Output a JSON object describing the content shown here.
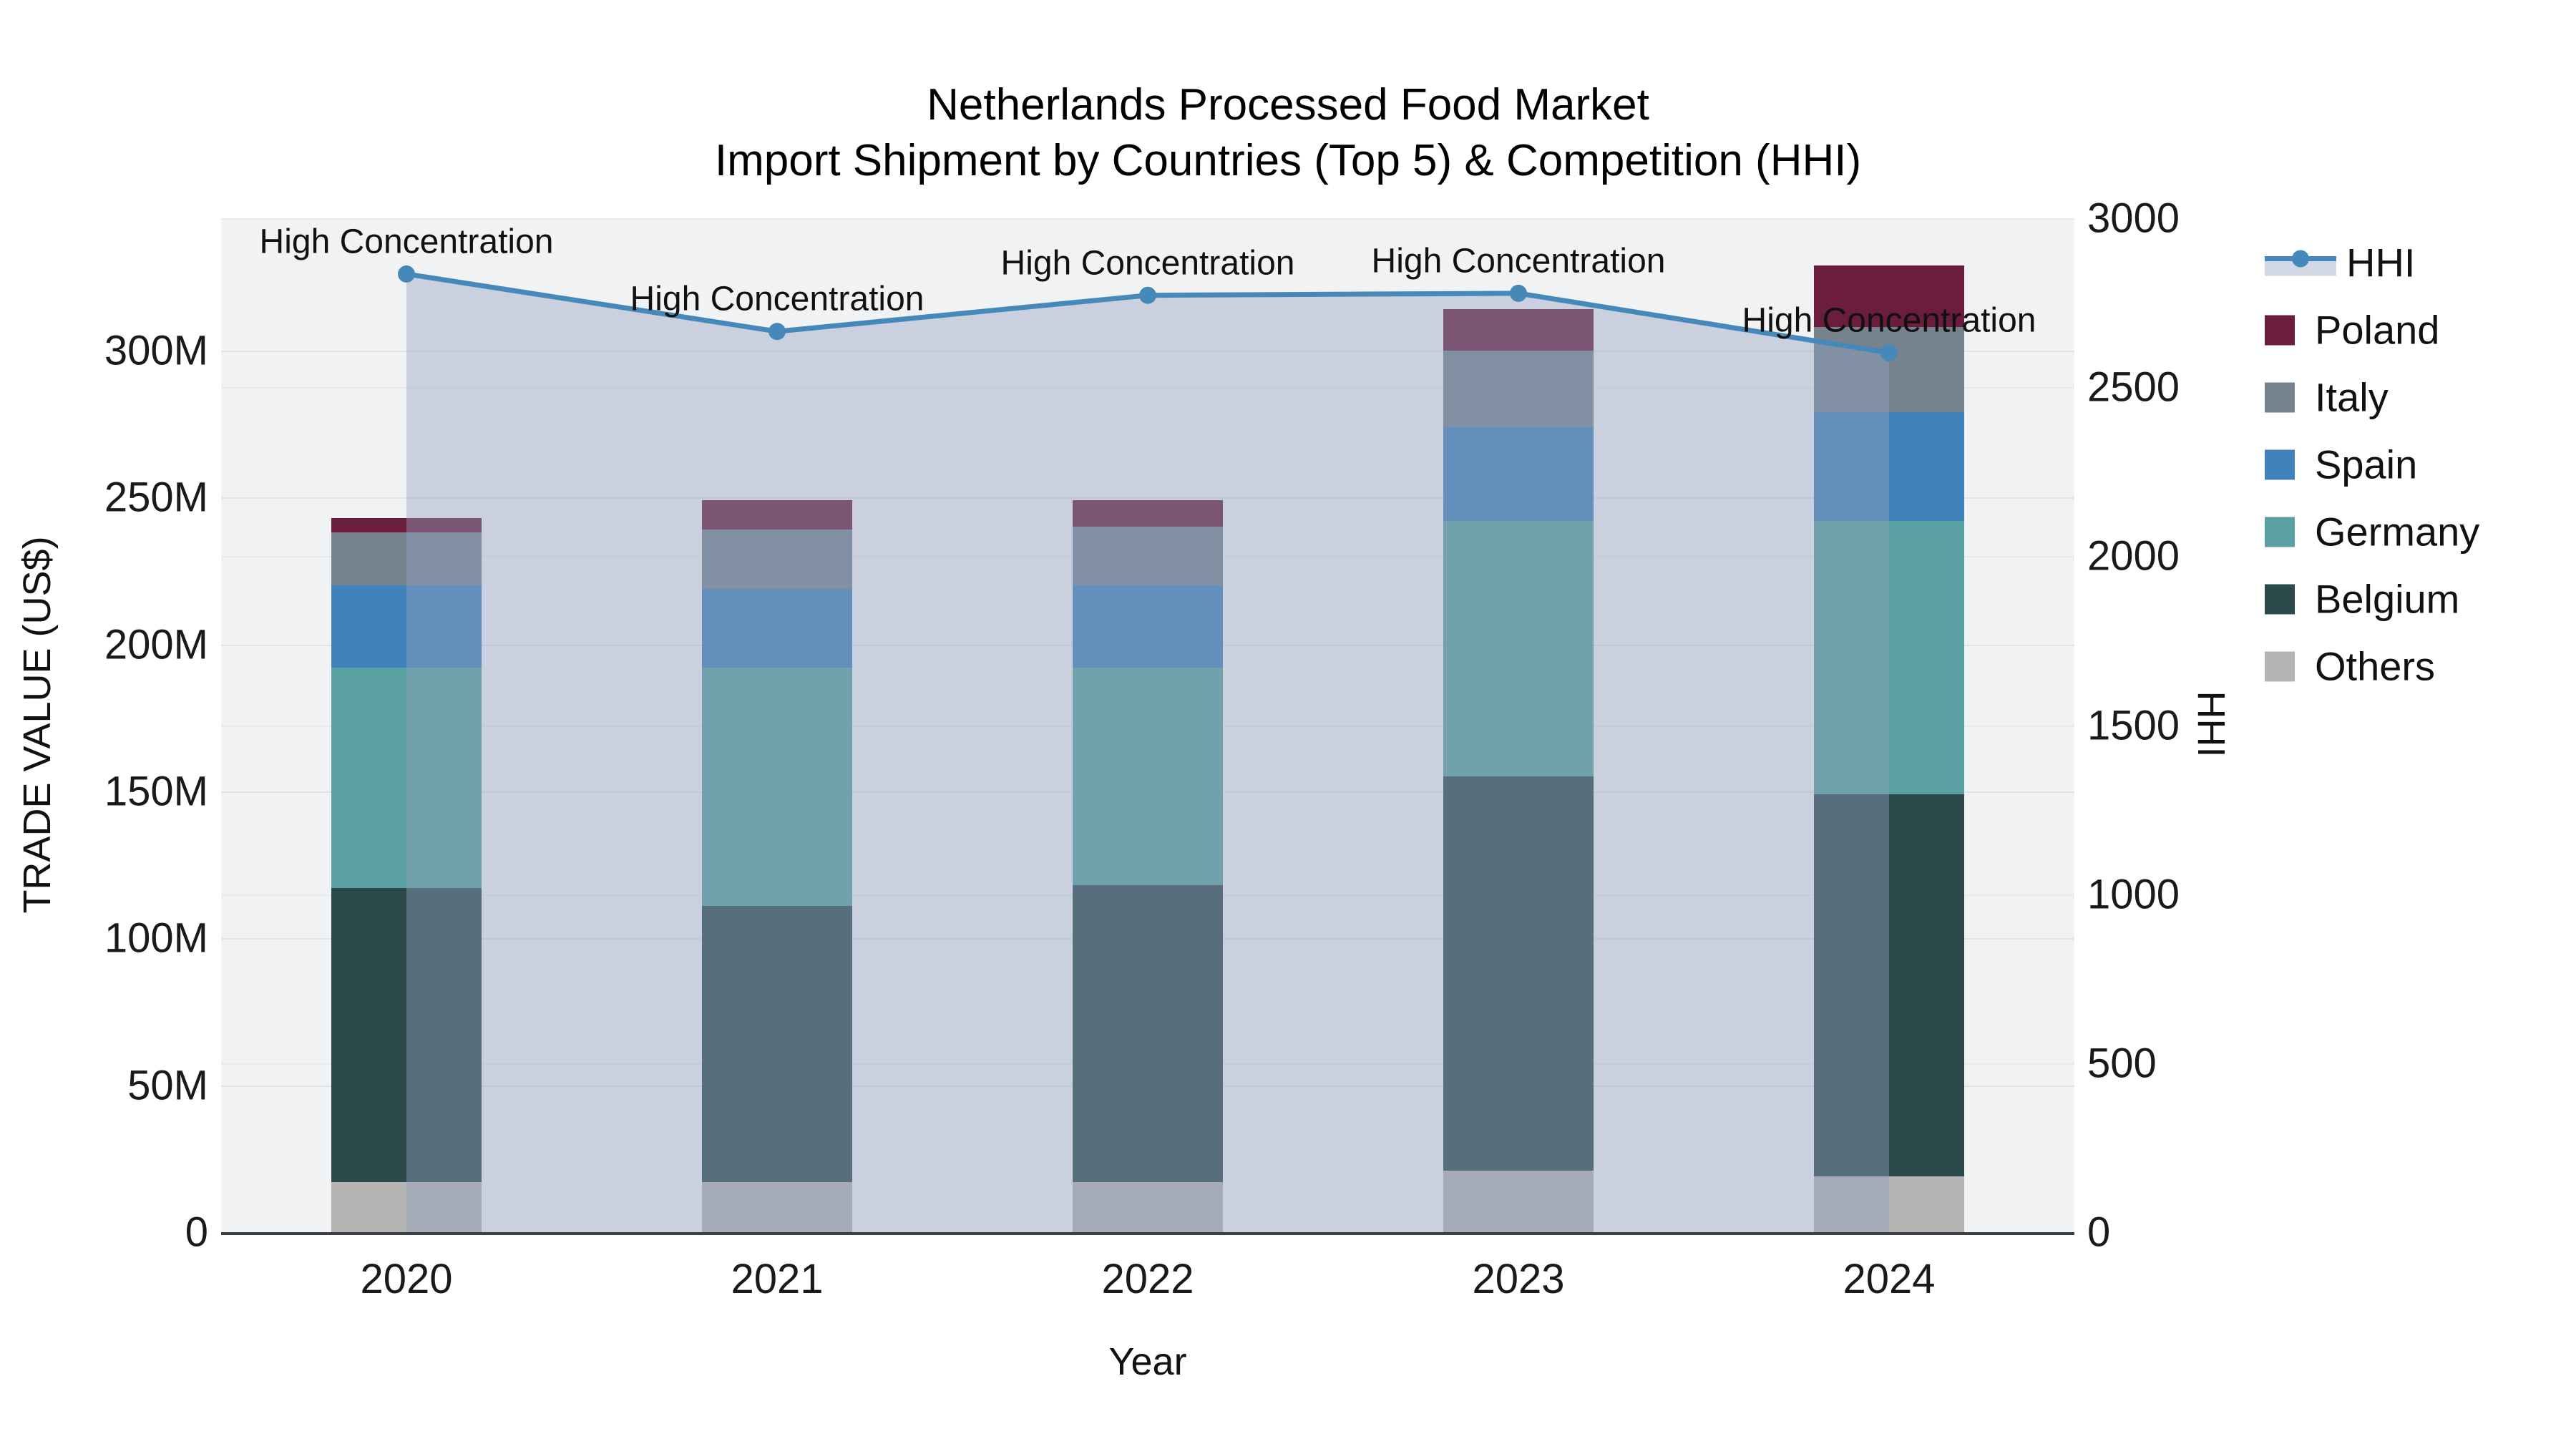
{
  "title": {
    "line1": "Netherlands Processed Food Market",
    "line2": "Import Shipment by Countries (Top 5) & Competition (HHI)"
  },
  "chart_data": {
    "type": "bar+line",
    "categories": [
      "2020",
      "2021",
      "2022",
      "2023",
      "2024"
    ],
    "stack_series": [
      {
        "name": "Others",
        "color": "#b4b4b2",
        "values": [
          17,
          17,
          17,
          21,
          19
        ]
      },
      {
        "name": "Belgium",
        "color": "#2c4a4c",
        "values": [
          100,
          94,
          101,
          134,
          130
        ]
      },
      {
        "name": "Germany",
        "color": "#5ba1a3",
        "values": [
          75,
          81,
          74,
          87,
          93
        ]
      },
      {
        "name": "Spain",
        "color": "#4181bc",
        "values": [
          28,
          27,
          28,
          32,
          37
        ]
      },
      {
        "name": "Italy",
        "color": "#76838f",
        "values": [
          18,
          20,
          20,
          26,
          29
        ]
      },
      {
        "name": "Poland",
        "color": "#6b1d3e",
        "values": [
          5,
          10,
          9,
          14,
          21
        ]
      }
    ],
    "stack_totals_millions": [
      243,
      249,
      249,
      314,
      329
    ],
    "line_series": {
      "name": "HHI",
      "color": "#4788ba",
      "area_fill": "rgba(148,163,190,0.42)",
      "values": [
        2835,
        2665,
        2772,
        2778,
        2602
      ]
    },
    "annotations": [
      "High Concentration",
      "High Concentration",
      "High Concentration",
      "High Concentration",
      "High Concentration"
    ],
    "y_left": {
      "title": "TRADE VALUE (US$)",
      "tick_labels": [
        "0",
        "50M",
        "100M",
        "150M",
        "200M",
        "250M",
        "300M"
      ],
      "tick_values": [
        0,
        50,
        100,
        150,
        200,
        250,
        300
      ],
      "range_max": 345,
      "units": "millions US$"
    },
    "y_right": {
      "title": "HHI",
      "tick_labels": [
        "0",
        "500",
        "1000",
        "1500",
        "2000",
        "2500",
        "3000"
      ],
      "tick_values": [
        0,
        500,
        1000,
        1500,
        2000,
        2500,
        3000
      ],
      "range_max": 3000
    },
    "x": {
      "title": "Year"
    },
    "grid": "on",
    "legend_position": "right"
  },
  "legend": {
    "items": [
      {
        "label": "HHI",
        "color": "#4788ba",
        "type": "line"
      },
      {
        "label": "Poland",
        "color": "#6b1d3e",
        "type": "square"
      },
      {
        "label": "Italy",
        "color": "#76838f",
        "type": "square"
      },
      {
        "label": "Spain",
        "color": "#4181bc",
        "type": "square"
      },
      {
        "label": "Germany",
        "color": "#5ba1a3",
        "type": "square"
      },
      {
        "label": "Belgium",
        "color": "#2c4a4c",
        "type": "square"
      },
      {
        "label": "Others",
        "color": "#b4b4b2",
        "type": "square"
      }
    ]
  }
}
